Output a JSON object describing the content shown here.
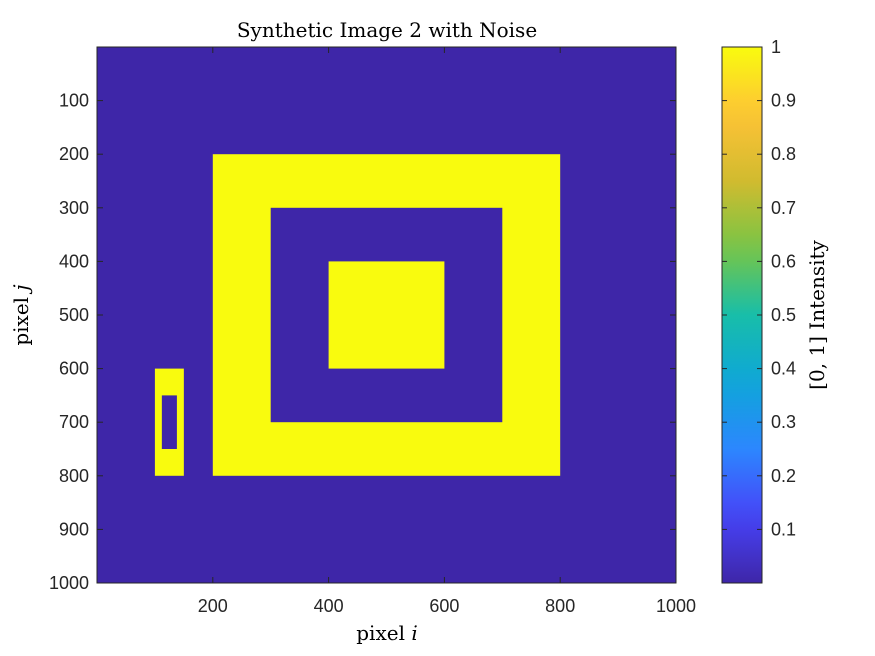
{
  "chart_data": {
    "type": "heatmap",
    "title": "Synthetic Image 2 with Noise",
    "xlabel": {
      "text": "pixel ",
      "var": "i"
    },
    "ylabel": {
      "text": "pixel ",
      "var": "j"
    },
    "xlim": [
      0,
      1000
    ],
    "ylim": [
      1000,
      0
    ],
    "y_direction": "reversed",
    "xticks": [
      200,
      400,
      600,
      800,
      1000
    ],
    "yticks": [
      100,
      200,
      300,
      400,
      500,
      600,
      700,
      800,
      900,
      1000
    ],
    "background_value": 0,
    "regions": [
      {
        "value": 1,
        "x": [
          200,
          800
        ],
        "y": [
          200,
          800
        ]
      },
      {
        "value": 0,
        "x": [
          300,
          700
        ],
        "y": [
          300,
          700
        ]
      },
      {
        "value": 1,
        "x": [
          400,
          600
        ],
        "y": [
          400,
          600
        ]
      },
      {
        "value": 1,
        "x": [
          100,
          150
        ],
        "y": [
          600,
          800
        ]
      },
      {
        "value": 0,
        "x": [
          112,
          138
        ],
        "y": [
          650,
          750
        ]
      }
    ],
    "colormap": "parula",
    "colormap_stops": [
      "#3e26a8",
      "#4743f8",
      "#2c87fe",
      "#0ea6d8",
      "#18bea9",
      "#78c545",
      "#d1bb2f",
      "#fec337",
      "#f9fb0e"
    ],
    "colorbar": {
      "label": "[0, 1] Intensity",
      "range": [
        0,
        1
      ],
      "ticks": [
        0.1,
        0.2,
        0.3,
        0.4,
        0.5,
        0.6,
        0.7,
        0.8,
        0.9,
        1
      ]
    },
    "grid": false,
    "legend": "none"
  }
}
